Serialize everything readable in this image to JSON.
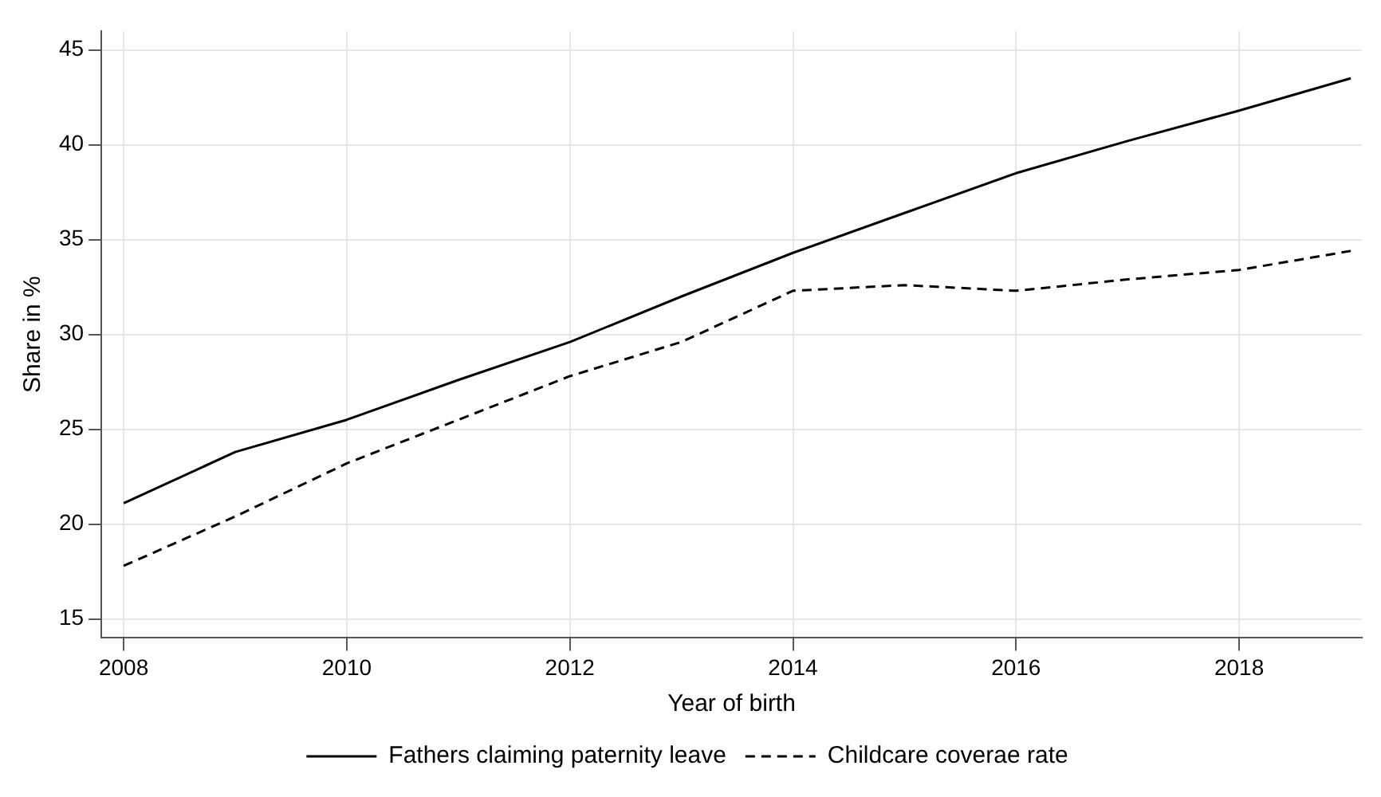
{
  "chart_data": {
    "type": "line",
    "xlabel": "Year of birth",
    "ylabel": "Share in %",
    "x": [
      2008,
      2009,
      2010,
      2011,
      2012,
      2013,
      2014,
      2015,
      2016,
      2017,
      2018,
      2019
    ],
    "series": [
      {
        "name": "Fathers claiming paternity leave",
        "color": "#000000",
        "line_style": "solid",
        "values": [
          21.1,
          23.8,
          25.5,
          27.6,
          29.6,
          32.0,
          34.3,
          36.4,
          38.5,
          40.2,
          41.8,
          43.5
        ]
      },
      {
        "name": "Childcare coverae rate",
        "color": "#000000",
        "line_style": "dashed",
        "values": [
          17.8,
          20.4,
          23.2,
          25.5,
          27.8,
          29.6,
          32.3,
          32.6,
          32.3,
          32.9,
          33.4,
          34.4
        ]
      }
    ],
    "xlim": [
      2007.8,
      2019.1
    ],
    "xticks": [
      2008,
      2010,
      2012,
      2014,
      2016,
      2018
    ],
    "ylim": [
      14,
      46
    ],
    "yticks": [
      15,
      20,
      25,
      30,
      35,
      40,
      45
    ],
    "grid": true,
    "legend": "bottom",
    "marker": "none"
  }
}
